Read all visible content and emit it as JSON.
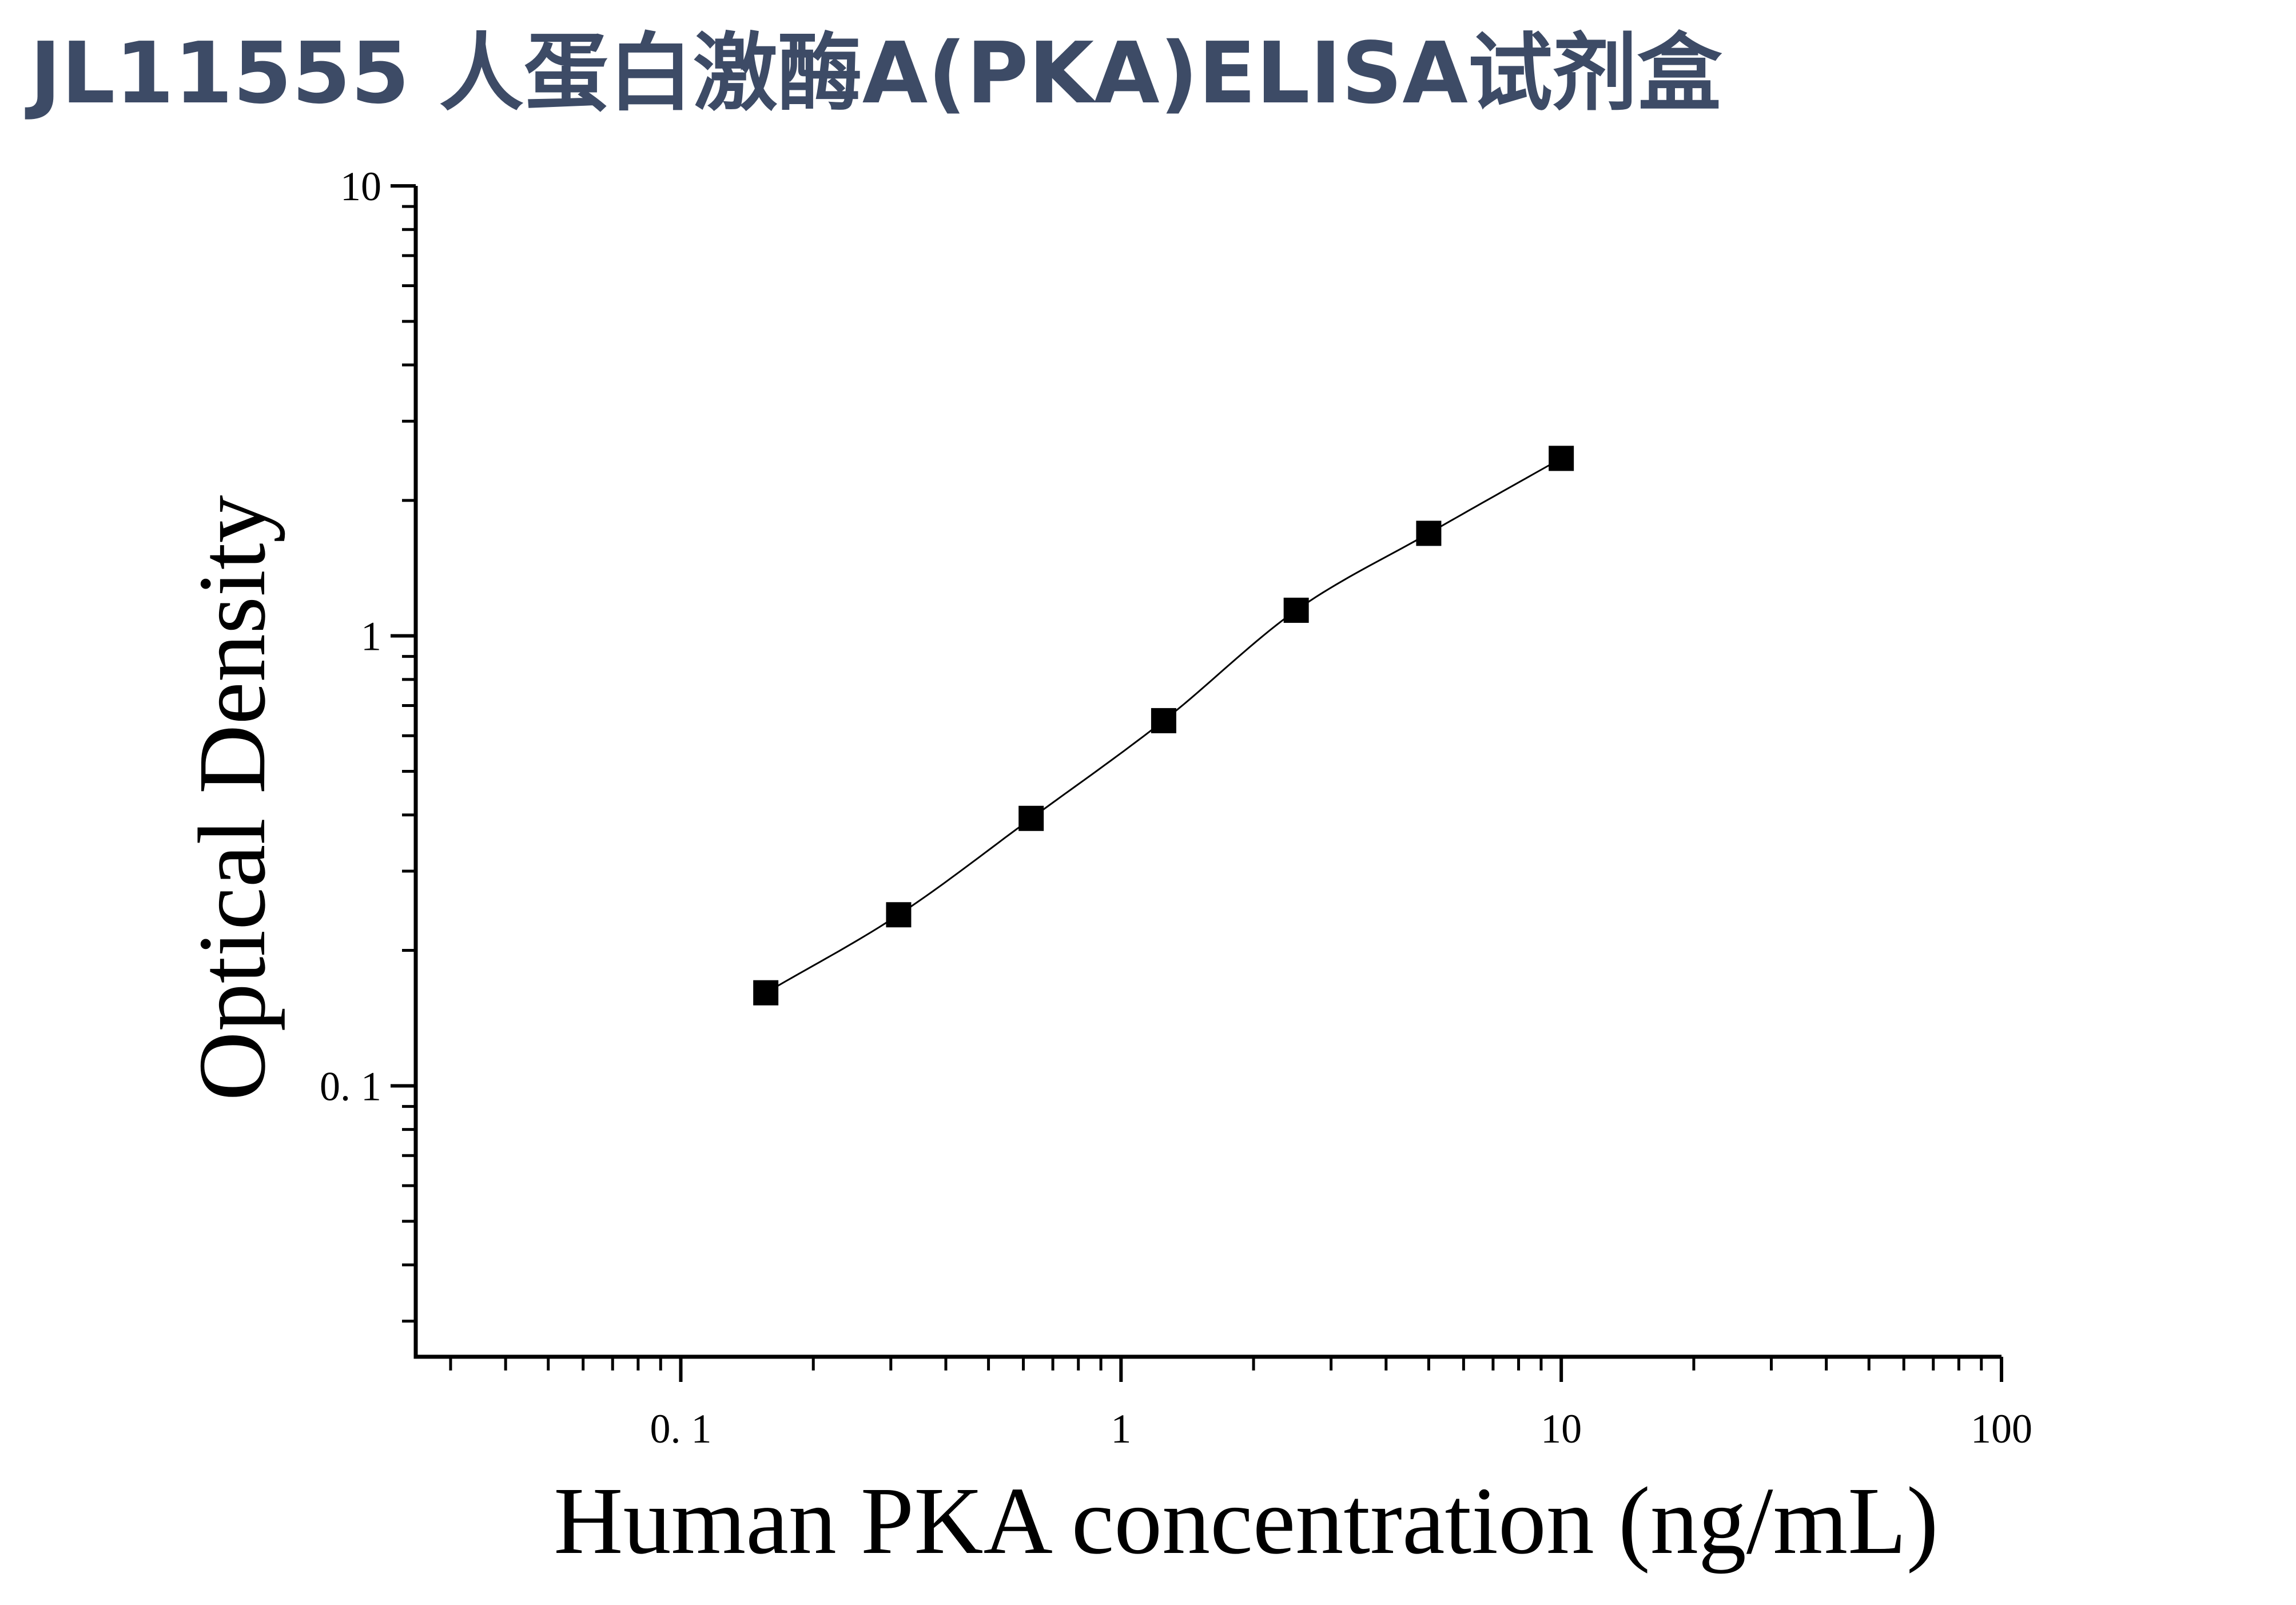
{
  "title": "JL11555 人蛋白激酶A(PKA)ELISA试剂盒",
  "chart_data": {
    "type": "scatter",
    "title": "JL11555 人蛋白激酶A(PKA)ELISA试剂盒",
    "xlabel": "Human PKA concentration (ng/mL)",
    "ylabel": "Optical Density",
    "xscale": "log",
    "yscale": "log",
    "xlim": [
      0.025,
      100
    ],
    "ylim": [
      0.025,
      10
    ],
    "xticks": [
      0.1,
      1,
      10,
      100
    ],
    "xtick_labels": [
      "0. 1",
      "1",
      "10",
      "100"
    ],
    "yticks": [
      0.1,
      1,
      10
    ],
    "ytick_labels": [
      "0. 1",
      "1",
      "10"
    ],
    "grid": false,
    "legend": "none",
    "marker": "square",
    "color": "#000000",
    "title_color": "#3d4b66",
    "fit_curve": true,
    "series": [
      {
        "x": [
          0.156,
          0.3125,
          0.625,
          1.25,
          2.5,
          5,
          10
        ],
        "y": [
          0.161,
          0.24,
          0.393,
          0.648,
          1.14,
          1.69,
          2.48
        ]
      }
    ]
  }
}
